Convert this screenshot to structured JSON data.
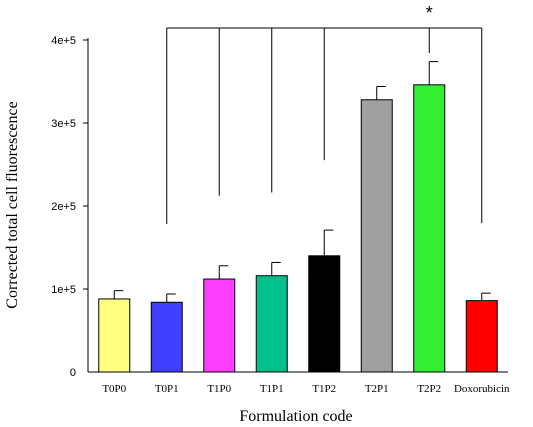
{
  "chart_data": {
    "type": "bar",
    "xlabel": "Formulation code",
    "ylabel": "Corrected total cell fluorescence",
    "ylim": [
      0,
      400000
    ],
    "yticks": [
      0,
      100000,
      200000,
      300000,
      400000
    ],
    "ytick_labels": [
      "0",
      "1e+5",
      "2e+5",
      "3e+5",
      "4e+5"
    ],
    "categories": [
      "T0P0",
      "T0P1",
      "T1P0",
      "T1P1",
      "T1P2",
      "T2P1",
      "T2P2",
      "Doxorubicin"
    ],
    "values": [
      88000,
      84000,
      112000,
      116000,
      140000,
      328000,
      346000,
      86000
    ],
    "errors": [
      10000,
      10000,
      16000,
      16000,
      31000,
      16000,
      28000,
      9000
    ],
    "colors": [
      "#ffff80",
      "#3f3fff",
      "#ff3fff",
      "#00c08c",
      "#000000",
      "#a0a0a0",
      "#33ee33",
      "#ff0000"
    ],
    "significance": {
      "label": "*",
      "reference": "T2P2",
      "compared": [
        "T0P1",
        "T1P0",
        "T1P1",
        "T1P2",
        "Doxorubicin"
      ]
    }
  }
}
